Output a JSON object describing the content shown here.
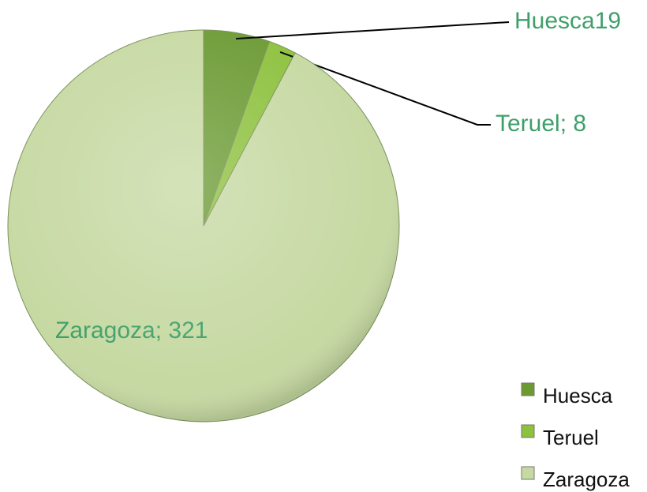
{
  "chart_data": {
    "type": "pie",
    "categories": [
      "Huesca",
      "Teruel",
      "Zaragoza"
    ],
    "values": [
      19,
      8,
      321
    ],
    "value_labels": [
      "Huesca19",
      "Teruel; 8",
      "Zaragoza; 321"
    ],
    "colors": [
      "#6b9a33",
      "#8dc13e",
      "#c6d9a2"
    ],
    "legend": "bottom-right"
  }
}
